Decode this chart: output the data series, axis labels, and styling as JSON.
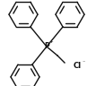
{
  "bg_color": "#ffffff",
  "line_color": "#111111",
  "line_width": 1.0,
  "text_color": "#111111",
  "chloride_text": "Cl",
  "chloride_charge": "⁻",
  "phosphorus_label": "P",
  "phosphorus_charge": "+"
}
